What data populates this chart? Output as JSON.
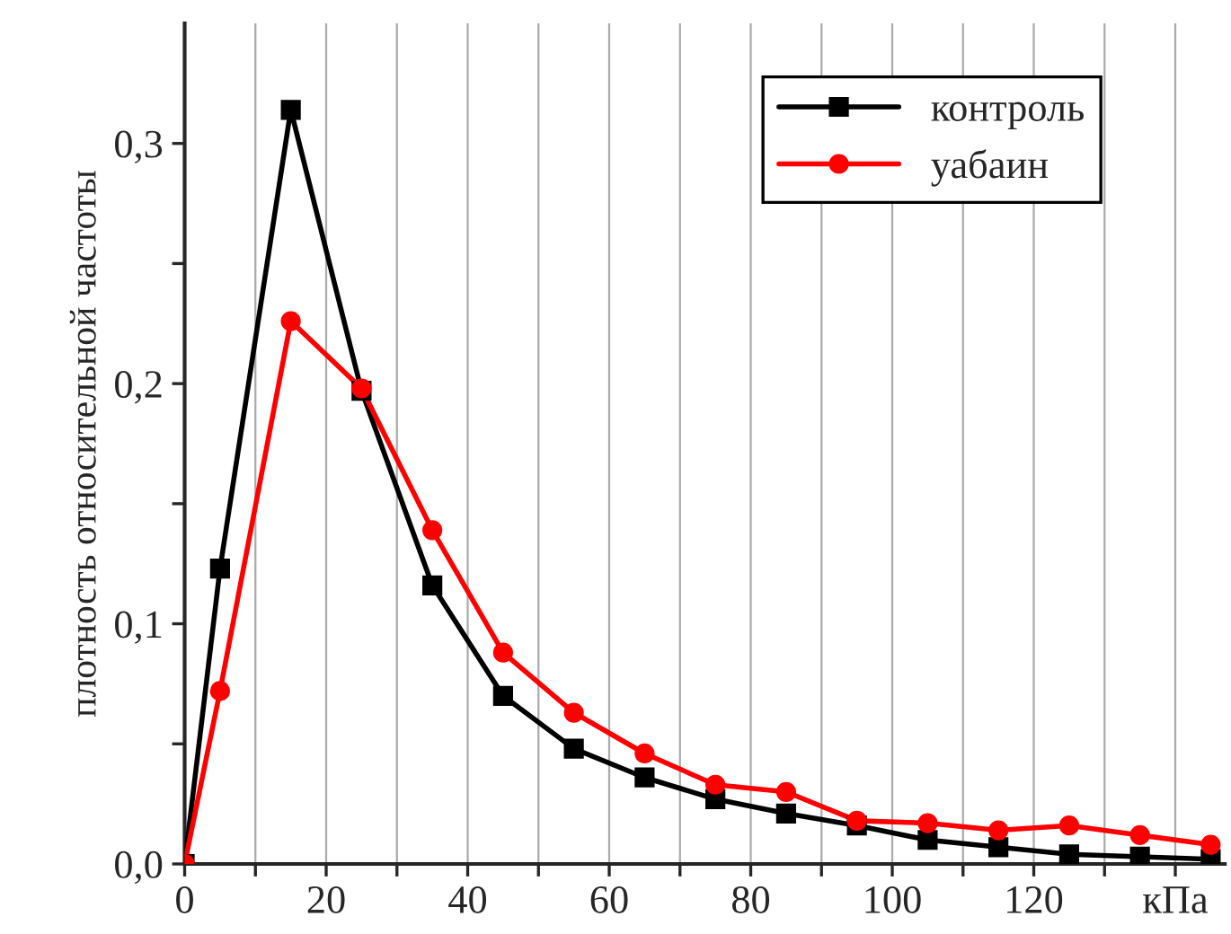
{
  "chart_data": {
    "type": "line",
    "ylabel": "плотность относительной частоты",
    "x": [
      0,
      5,
      15,
      25,
      35,
      45,
      55,
      65,
      75,
      85,
      95,
      105,
      115,
      125,
      135,
      145
    ],
    "series": [
      {
        "name": "контроль",
        "color": "#000000",
        "marker": "square",
        "values": [
          0,
          0.123,
          0.314,
          0.197,
          0.116,
          0.07,
          0.048,
          0.036,
          0.027,
          0.021,
          0.016,
          0.01,
          0.007,
          0.004,
          0.003,
          0.002
        ]
      },
      {
        "name": "уабаин",
        "color": "#ff0000",
        "marker": "circle",
        "values": [
          0,
          0.072,
          0.226,
          0.198,
          0.139,
          0.088,
          0.063,
          0.046,
          0.033,
          0.03,
          0.018,
          0.017,
          0.014,
          0.016,
          0.012,
          0.008
        ]
      }
    ],
    "xlim": [
      0,
      147
    ],
    "ylim": [
      0,
      0.35
    ],
    "xticks": [
      0,
      {
        "value": 10,
        "label": null
      },
      20,
      {
        "value": 30,
        "label": null
      },
      40,
      {
        "value": 50,
        "label": null
      },
      60,
      {
        "value": 70,
        "label": null
      },
      80,
      {
        "value": 90,
        "label": null
      },
      100,
      {
        "value": 110,
        "label": null
      },
      120,
      {
        "value": 130,
        "label": null
      },
      {
        "value": 140,
        "label": "кПа"
      }
    ],
    "yticks": [
      {
        "value": 0,
        "label": "0,0"
      },
      {
        "value": 0.05,
        "label": null
      },
      {
        "value": 0.1,
        "label": "0,1"
      },
      {
        "value": 0.15,
        "label": null
      },
      {
        "value": 0.2,
        "label": "0,2"
      },
      {
        "value": 0.25,
        "label": null
      },
      {
        "value": 0.3,
        "label": "0,3"
      }
    ],
    "grid": "x",
    "legend": "top right",
    "line_style": "solid"
  }
}
